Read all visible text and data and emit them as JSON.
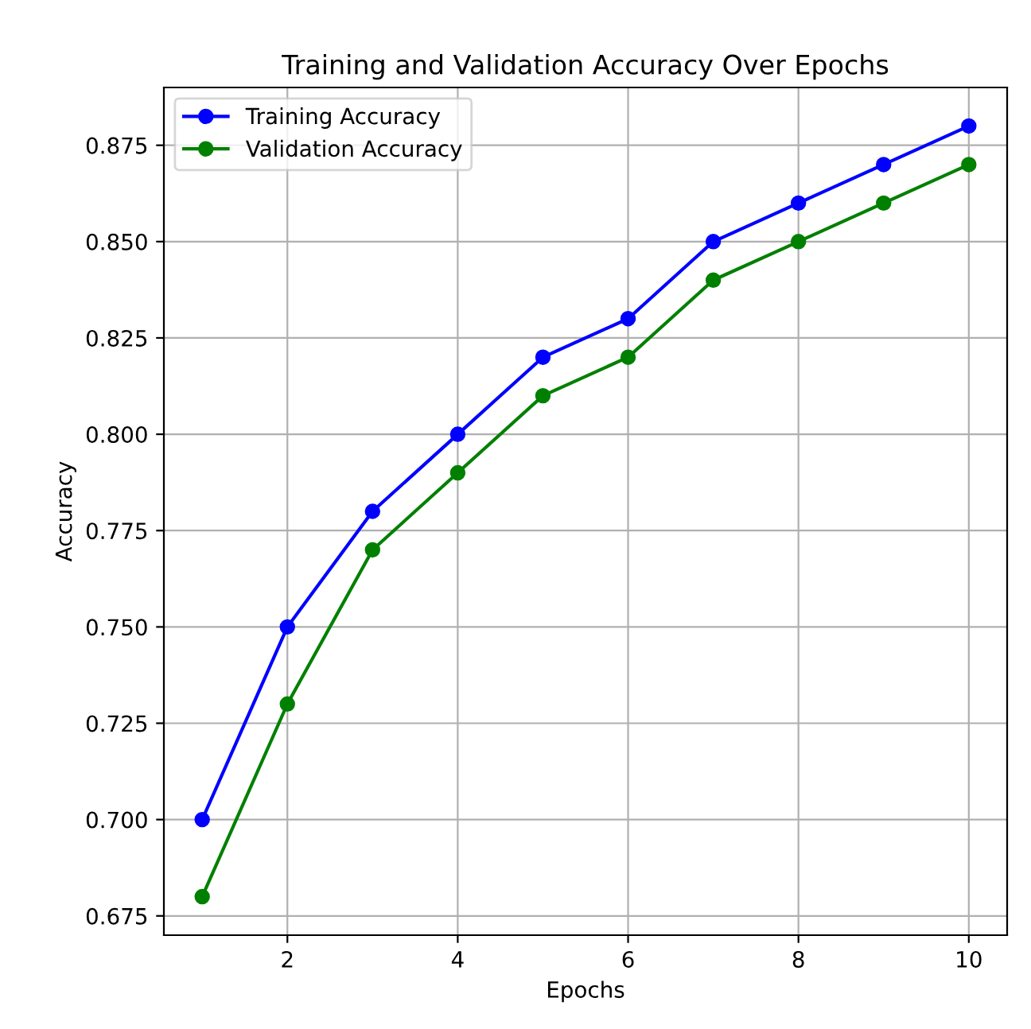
{
  "chart_data": {
    "type": "line",
    "title": "Training and Validation Accuracy Over Epochs",
    "xlabel": "Epochs",
    "ylabel": "Accuracy",
    "x": [
      1,
      2,
      3,
      4,
      5,
      6,
      7,
      8,
      9,
      10
    ],
    "series": [
      {
        "name": "Training Accuracy",
        "color": "#0000ff",
        "values": [
          0.7,
          0.75,
          0.78,
          0.8,
          0.82,
          0.83,
          0.85,
          0.86,
          0.87,
          0.88
        ]
      },
      {
        "name": "Validation Accuracy",
        "color": "#008000",
        "values": [
          0.68,
          0.73,
          0.77,
          0.79,
          0.81,
          0.82,
          0.84,
          0.85,
          0.86,
          0.87
        ]
      }
    ],
    "xlim": [
      0.55,
      10.45
    ],
    "ylim": [
      0.67,
      0.89
    ],
    "xticks": [
      2,
      4,
      6,
      8,
      10
    ],
    "yticks": [
      {
        "value": 0.675,
        "label": "0.675"
      },
      {
        "value": 0.7,
        "label": "0.700"
      },
      {
        "value": 0.725,
        "label": "0.725"
      },
      {
        "value": 0.75,
        "label": "0.750"
      },
      {
        "value": 0.775,
        "label": "0.775"
      },
      {
        "value": 0.8,
        "label": "0.800"
      },
      {
        "value": 0.825,
        "label": "0.825"
      },
      {
        "value": 0.85,
        "label": "0.850"
      },
      {
        "value": 0.875,
        "label": "0.875"
      }
    ],
    "grid": true,
    "legend": "top left",
    "marker": "circle",
    "line_style": "solid"
  }
}
